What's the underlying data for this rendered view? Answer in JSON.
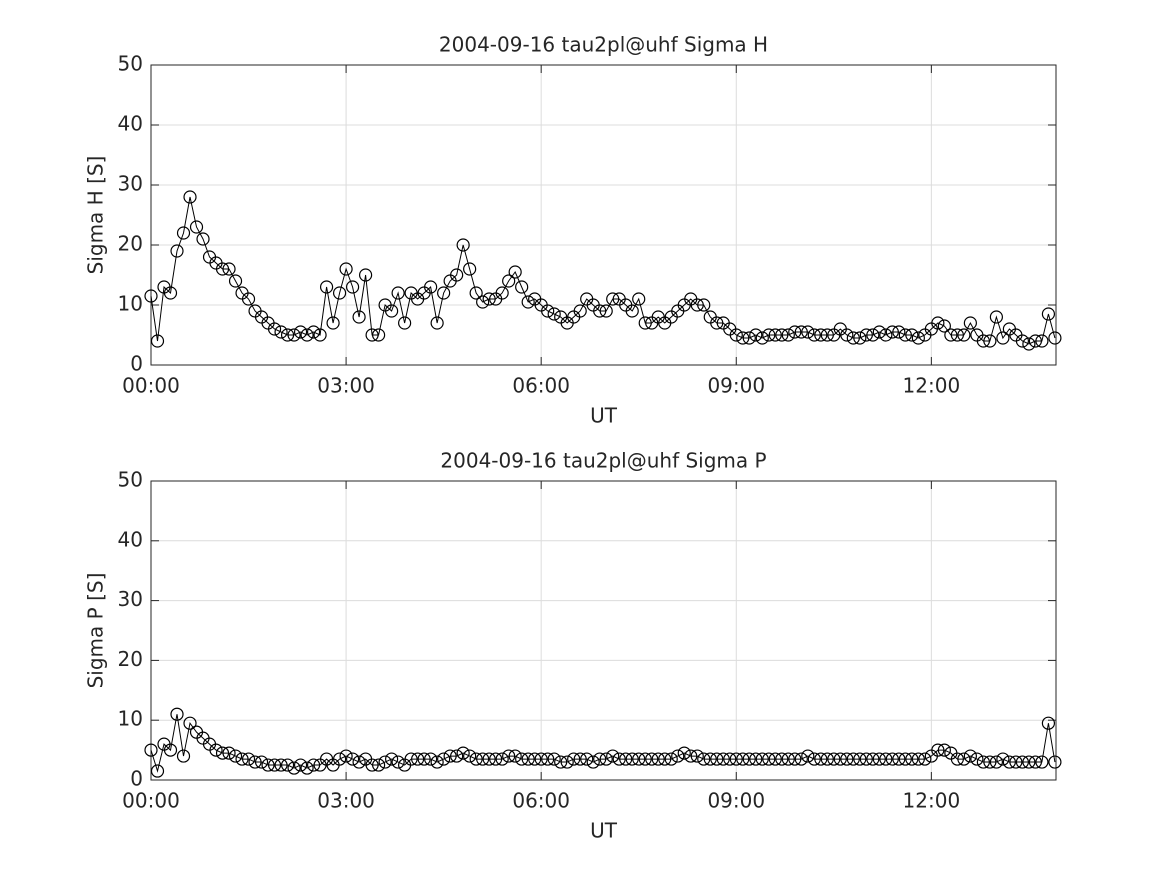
{
  "chart_data": [
    {
      "type": "line",
      "title": "2004-09-16  tau2pl@uhf Sigma H",
      "xlabel": "UT",
      "ylabel": "Sigma H [S]",
      "color": "#000000",
      "marker": "circle",
      "grid": true,
      "x": [
        0,
        6,
        12,
        18,
        24,
        30,
        36,
        42,
        48,
        54,
        60,
        66,
        72,
        78,
        84,
        90,
        96,
        102,
        108,
        114,
        120,
        126,
        132,
        138,
        144,
        150,
        156,
        162,
        168,
        174,
        180,
        186,
        192,
        198,
        204,
        210,
        216,
        222,
        228,
        234,
        240,
        246,
        252,
        258,
        264,
        270,
        276,
        282,
        288,
        294,
        300,
        306,
        312,
        318,
        324,
        330,
        336,
        342,
        348,
        354,
        360,
        366,
        372,
        378,
        384,
        390,
        396,
        402,
        408,
        414,
        420,
        426,
        432,
        438,
        444,
        450,
        456,
        462,
        468,
        474,
        480,
        486,
        492,
        498,
        504,
        510,
        516,
        522,
        528,
        534,
        540,
        546,
        552,
        558,
        564,
        570,
        576,
        582,
        588,
        594,
        600,
        606,
        612,
        618,
        624,
        630,
        636,
        642,
        648,
        654,
        660,
        666,
        672,
        678,
        684,
        690,
        696,
        702,
        708,
        714,
        720,
        726,
        732,
        738,
        744,
        750,
        756,
        762,
        768,
        774,
        780,
        786,
        792,
        798,
        804,
        810,
        816,
        822,
        828,
        834
      ],
      "values": [
        11.5,
        4,
        13,
        12,
        19,
        22,
        28,
        23,
        21,
        18,
        17,
        16,
        16,
        14,
        12,
        11,
        9,
        8,
        7,
        6,
        5.5,
        5,
        5,
        5.5,
        5,
        5.5,
        5,
        13,
        7,
        12,
        16,
        13,
        8,
        15,
        5,
        5,
        10,
        9,
        12,
        7,
        12,
        11,
        12,
        13,
        7,
        12,
        14,
        15,
        20,
        16,
        12,
        10.5,
        11,
        11,
        12,
        14,
        15.5,
        13,
        10.5,
        11,
        10,
        9,
        8.5,
        8,
        7,
        8,
        9,
        11,
        10,
        9,
        9,
        11,
        11,
        10,
        9,
        11,
        7,
        7,
        8,
        7,
        8,
        9,
        10,
        11,
        10,
        10,
        8,
        7,
        7,
        6,
        5,
        4.5,
        4.5,
        5,
        4.5,
        5,
        5,
        5,
        5,
        5.5,
        5.5,
        5.5,
        5,
        5,
        5,
        5,
        6,
        5,
        4.5,
        4.5,
        5,
        5,
        5.5,
        5,
        5.5,
        5.5,
        5,
        5,
        4.5,
        5,
        6,
        7,
        6.5,
        5,
        5,
        5,
        7,
        5,
        4,
        4,
        8,
        4.5,
        6,
        5,
        4,
        3.5,
        4,
        4,
        8.5,
        4.5
      ],
      "xlim": [
        0,
        835
      ],
      "ylim": [
        0,
        50
      ],
      "xticks": [
        {
          "value": 0,
          "label": "00:00"
        },
        {
          "value": 180,
          "label": "03:00"
        },
        {
          "value": 360,
          "label": "06:00"
        },
        {
          "value": 540,
          "label": "09:00"
        },
        {
          "value": 720,
          "label": "12:00"
        }
      ],
      "yticks": [
        0,
        10,
        20,
        30,
        40,
        50
      ]
    },
    {
      "type": "line",
      "title": "2004-09-16  tau2pl@uhf Sigma P",
      "xlabel": "UT",
      "ylabel": "Sigma P [S]",
      "color": "#000000",
      "marker": "circle",
      "grid": true,
      "x": [
        0,
        6,
        12,
        18,
        24,
        30,
        36,
        42,
        48,
        54,
        60,
        66,
        72,
        78,
        84,
        90,
        96,
        102,
        108,
        114,
        120,
        126,
        132,
        138,
        144,
        150,
        156,
        162,
        168,
        174,
        180,
        186,
        192,
        198,
        204,
        210,
        216,
        222,
        228,
        234,
        240,
        246,
        252,
        258,
        264,
        270,
        276,
        282,
        288,
        294,
        300,
        306,
        312,
        318,
        324,
        330,
        336,
        342,
        348,
        354,
        360,
        366,
        372,
        378,
        384,
        390,
        396,
        402,
        408,
        414,
        420,
        426,
        432,
        438,
        444,
        450,
        456,
        462,
        468,
        474,
        480,
        486,
        492,
        498,
        504,
        510,
        516,
        522,
        528,
        534,
        540,
        546,
        552,
        558,
        564,
        570,
        576,
        582,
        588,
        594,
        600,
        606,
        612,
        618,
        624,
        630,
        636,
        642,
        648,
        654,
        660,
        666,
        672,
        678,
        684,
        690,
        696,
        702,
        708,
        714,
        720,
        726,
        732,
        738,
        744,
        750,
        756,
        762,
        768,
        774,
        780,
        786,
        792,
        798,
        804,
        810,
        816,
        822,
        828,
        834
      ],
      "values": [
        5,
        1.5,
        6,
        5,
        11,
        4,
        9.5,
        8,
        7,
        6,
        5,
        4.5,
        4.5,
        4,
        3.5,
        3.5,
        3,
        3,
        2.5,
        2.5,
        2.5,
        2.5,
        2,
        2.5,
        2,
        2.5,
        2.5,
        3.5,
        2.5,
        3.5,
        4,
        3.5,
        3,
        3.5,
        2.5,
        2.5,
        3,
        3.5,
        3,
        2.5,
        3.5,
        3.5,
        3.5,
        3.5,
        3,
        3.5,
        4,
        4,
        4.5,
        4,
        3.5,
        3.5,
        3.5,
        3.5,
        3.5,
        4,
        4,
        3.5,
        3.5,
        3.5,
        3.5,
        3.5,
        3.5,
        3,
        3,
        3.5,
        3.5,
        3.5,
        3,
        3.5,
        3.5,
        4,
        3.5,
        3.5,
        3.5,
        3.5,
        3.5,
        3.5,
        3.5,
        3.5,
        3.5,
        4,
        4.5,
        4,
        4,
        3.5,
        3.5,
        3.5,
        3.5,
        3.5,
        3.5,
        3.5,
        3.5,
        3.5,
        3.5,
        3.5,
        3.5,
        3.5,
        3.5,
        3.5,
        3.5,
        4,
        3.5,
        3.5,
        3.5,
        3.5,
        3.5,
        3.5,
        3.5,
        3.5,
        3.5,
        3.5,
        3.5,
        3.5,
        3.5,
        3.5,
        3.5,
        3.5,
        3.5,
        3.5,
        4,
        5,
        5,
        4.5,
        3.5,
        3.5,
        4,
        3.5,
        3,
        3,
        3,
        3.5,
        3,
        3,
        3,
        3,
        3,
        3,
        9.5,
        3
      ],
      "xlim": [
        0,
        835
      ],
      "ylim": [
        0,
        50
      ],
      "xticks": [
        {
          "value": 0,
          "label": "00:00"
        },
        {
          "value": 180,
          "label": "03:00"
        },
        {
          "value": 360,
          "label": "06:00"
        },
        {
          "value": 540,
          "label": "09:00"
        },
        {
          "value": 720,
          "label": "12:00"
        }
      ],
      "yticks": [
        0,
        10,
        20,
        30,
        40,
        50
      ]
    }
  ]
}
